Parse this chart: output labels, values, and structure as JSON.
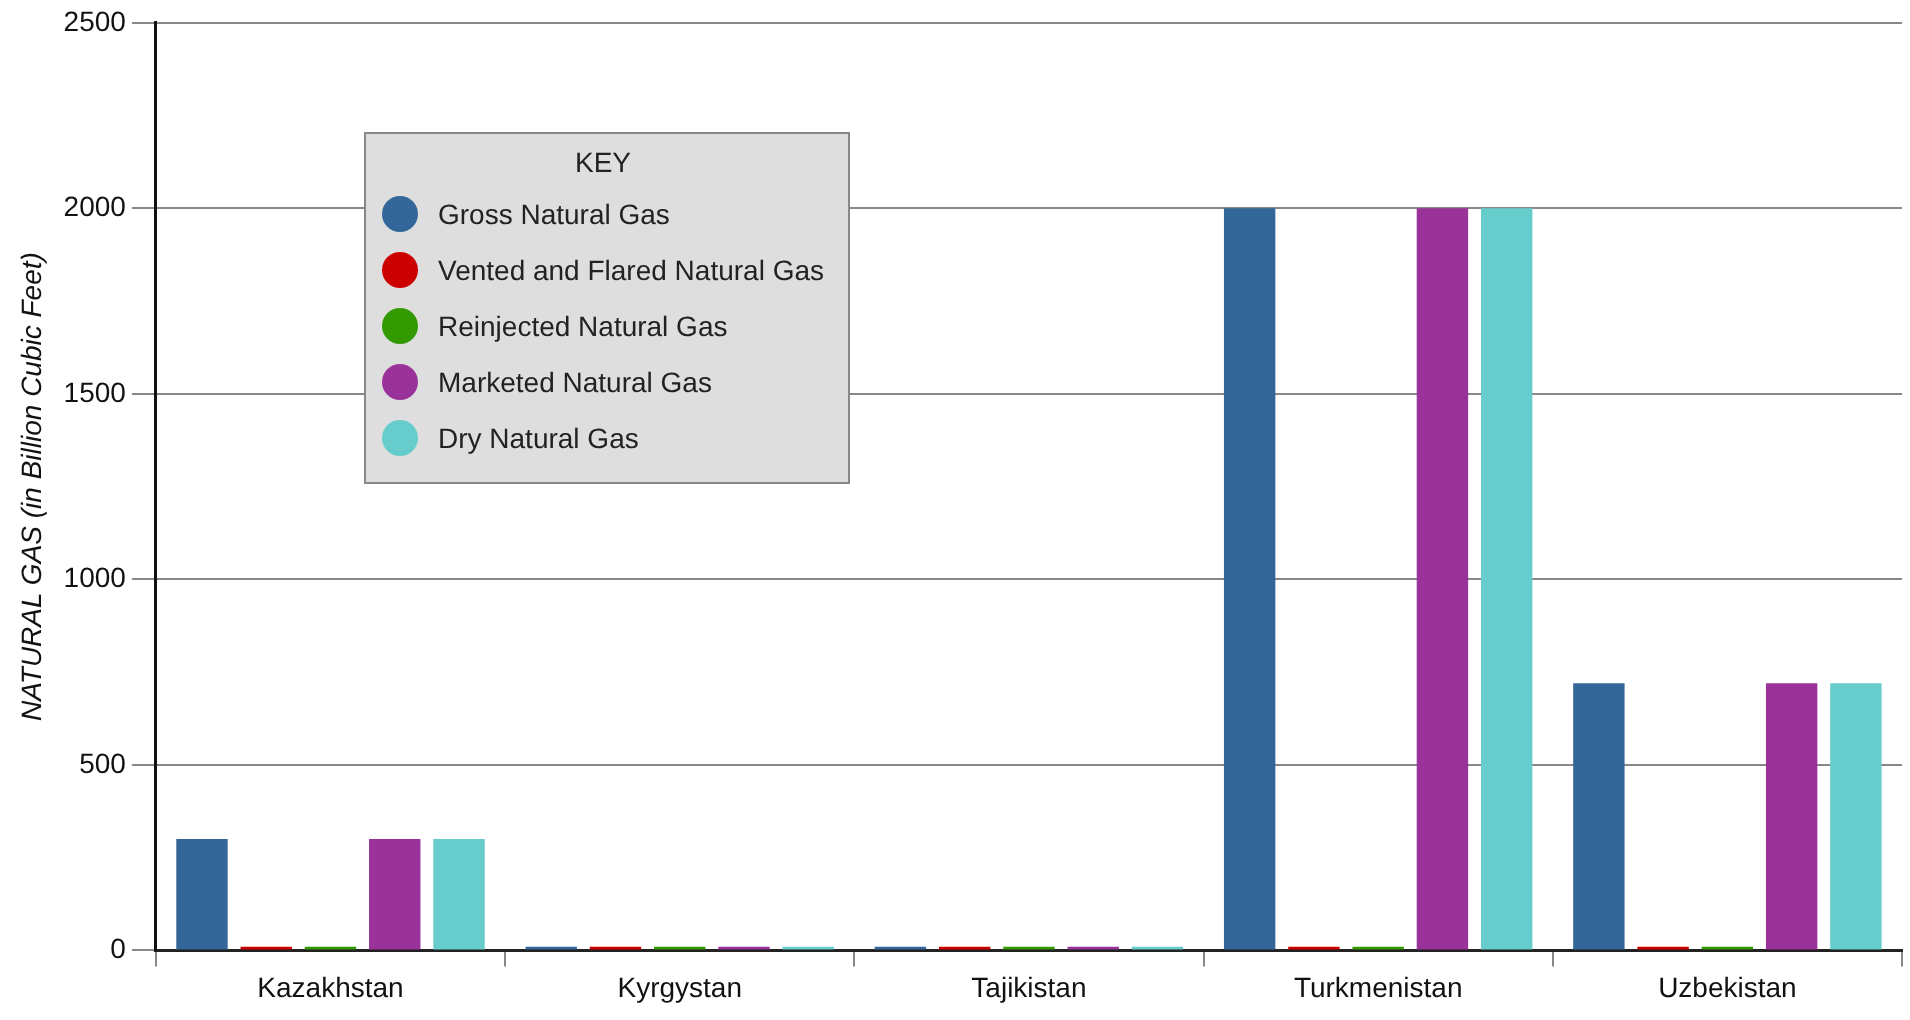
{
  "chart_data": {
    "type": "bar",
    "ylabel": "NATURAL GAS (in Billion Cubic Feet)",
    "legend_title": "KEY",
    "legend": "top left",
    "grid": "y",
    "categories": [
      "Kazakhstan",
      "Kyrgystan",
      "Tajikistan",
      "Turkmenistan",
      "Uzbekistan"
    ],
    "ylim": [
      0,
      2500
    ],
    "yticks": [
      0,
      500,
      1000,
      1500,
      2000,
      2500
    ],
    "series": [
      {
        "name": "Gross Natural Gas",
        "color": "#336699",
        "values": [
          300,
          10,
          10,
          2000,
          720
        ]
      },
      {
        "name": "Vented and Flared Natural Gas",
        "color": "#cc0000",
        "values": [
          10,
          10,
          10,
          10,
          10
        ]
      },
      {
        "name": "Reinjected Natural Gas",
        "color": "#339900",
        "values": [
          10,
          10,
          10,
          10,
          10
        ]
      },
      {
        "name": "Marketed Natural Gas",
        "color": "#993399",
        "values": [
          300,
          10,
          10,
          2000,
          720
        ]
      },
      {
        "name": "Dry Natural Gas",
        "color": "#66cccc",
        "values": [
          300,
          10,
          10,
          2000,
          720
        ]
      }
    ]
  }
}
